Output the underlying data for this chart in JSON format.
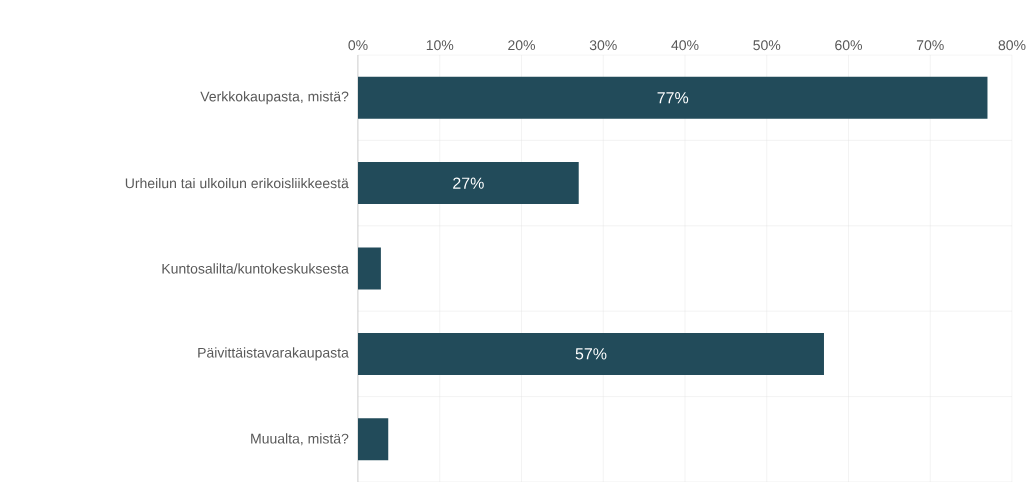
{
  "chart_data": {
    "type": "bar",
    "orientation": "horizontal",
    "categories": [
      "Verkkokaupasta, mistä?",
      "Urheilun tai ulkoilun erikoisliikkeestä",
      "Kuntosalilta/kuntokeskuksesta",
      "Päivittäistavarakaupasta",
      "Muualta, mistä?"
    ],
    "values": [
      77,
      27,
      2.8,
      57,
      3.7
    ],
    "value_labels": [
      "77%",
      "27%",
      null,
      "57%",
      null
    ],
    "color": "#224b5a",
    "xlim": [
      0,
      80
    ],
    "xticks": [
      {
        "value": 0,
        "label": "0%"
      },
      {
        "value": 10,
        "label": "10%"
      },
      {
        "value": 20,
        "label": "20%"
      },
      {
        "value": 30,
        "label": "30%"
      },
      {
        "value": 40,
        "label": "40%"
      },
      {
        "value": 50,
        "label": "50%"
      },
      {
        "value": 60,
        "label": "60%"
      },
      {
        "value": 70,
        "label": "70%"
      },
      {
        "value": 80,
        "label": "80%"
      }
    ],
    "grid": true
  }
}
